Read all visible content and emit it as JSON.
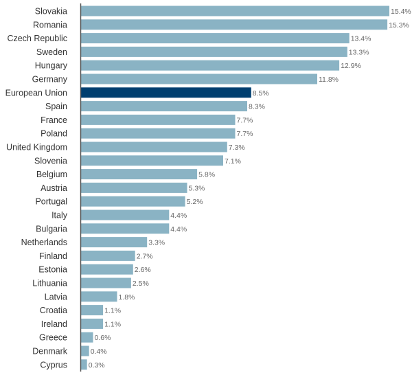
{
  "chart_data": {
    "type": "bar",
    "orientation": "horizontal",
    "title": "",
    "xlabel": "",
    "ylabel": "",
    "xlim": [
      0,
      15.4
    ],
    "grid": false,
    "value_suffix": "%",
    "categories": [
      "Slovakia",
      "Romania",
      "Czech Republic",
      "Sweden",
      "Hungary",
      "Germany",
      "European Union",
      "Spain",
      "France",
      "Poland",
      "United Kingdom",
      "Slovenia",
      "Belgium",
      "Austria",
      "Portugal",
      "Italy",
      "Bulgaria",
      "Netherlands",
      "Finland",
      "Estonia",
      "Lithuania",
      "Latvia",
      "Croatia",
      "Ireland",
      "Greece",
      "Denmark",
      "Cyprus"
    ],
    "values": [
      15.4,
      15.3,
      13.4,
      13.3,
      12.9,
      11.8,
      8.5,
      8.3,
      7.7,
      7.7,
      7.3,
      7.1,
      5.8,
      5.3,
      5.2,
      4.4,
      4.4,
      3.3,
      2.7,
      2.6,
      2.5,
      1.8,
      1.1,
      1.1,
      0.6,
      0.4,
      0.3
    ],
    "value_labels": [
      "15.4%",
      "15.3%",
      "13.4%",
      "13.3%",
      "12.9%",
      "11.8%",
      "8.5%",
      "8.3%",
      "7.7%",
      "7.7%",
      "7.3%",
      "7.1%",
      "5.8%",
      "5.3%",
      "5.2%",
      "4.4%",
      "4.4%",
      "3.3%",
      "2.7%",
      "2.6%",
      "2.5%",
      "1.8%",
      "1.1%",
      "1.1%",
      "0.6%",
      "0.4%",
      "0.3%"
    ],
    "highlight": "European Union",
    "colors": {
      "default": "#8ab3c4",
      "highlight": "#003f70",
      "axis": "#555555"
    }
  }
}
